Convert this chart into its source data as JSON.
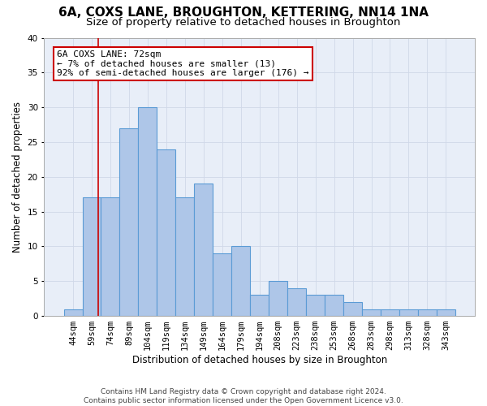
{
  "title_line1": "6A, COXS LANE, BROUGHTON, KETTERING, NN14 1NA",
  "title_line2": "Size of property relative to detached houses in Broughton",
  "xlabel": "Distribution of detached houses by size in Broughton",
  "ylabel": "Number of detached properties",
  "categories": [
    "44sqm",
    "59sqm",
    "74sqm",
    "89sqm",
    "104sqm",
    "119sqm",
    "134sqm",
    "149sqm",
    "164sqm",
    "179sqm",
    "194sqm",
    "208sqm",
    "223sqm",
    "238sqm",
    "253sqm",
    "268sqm",
    "283sqm",
    "298sqm",
    "313sqm",
    "328sqm",
    "343sqm"
  ],
  "values": [
    1,
    17,
    17,
    27,
    30,
    24,
    17,
    19,
    9,
    10,
    3,
    5,
    4,
    3,
    3,
    2,
    1,
    1,
    1,
    1,
    1
  ],
  "bar_color": "#aec6e8",
  "bar_edge_color": "#5b9bd5",
  "annotation_text_line1": "6A COXS LANE: 72sqm",
  "annotation_text_line2": "← 7% of detached houses are smaller (13)",
  "annotation_text_line3": "92% of semi-detached houses are larger (176) →",
  "annotation_box_color": "#ffffff",
  "annotation_box_edge_color": "#cc0000",
  "ylim": [
    0,
    40
  ],
  "yticks": [
    0,
    5,
    10,
    15,
    20,
    25,
    30,
    35,
    40
  ],
  "grid_color": "#d0d8e8",
  "bg_color": "#e8eef8",
  "footer_line1": "Contains HM Land Registry data © Crown copyright and database right 2024.",
  "footer_line2": "Contains public sector information licensed under the Open Government Licence v3.0.",
  "red_line_color": "#cc0000",
  "title_fontsize": 11,
  "subtitle_fontsize": 9.5,
  "label_fontsize": 8.5,
  "tick_fontsize": 7.5,
  "annotation_fontsize": 8,
  "footer_fontsize": 6.5
}
